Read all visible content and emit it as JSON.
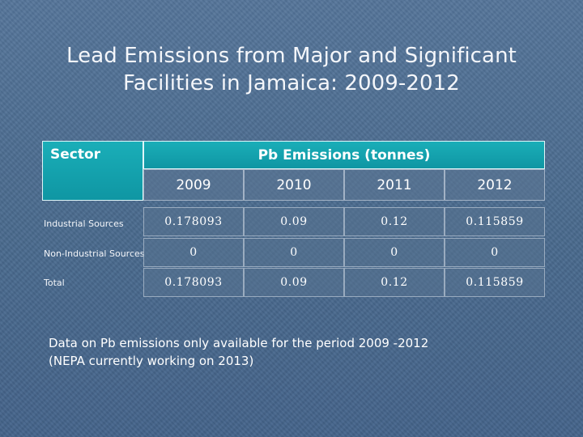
{
  "title": {
    "line1": "Lead Emissions from Major and Significant",
    "line2": "Facilities in Jamaica: 2009-2012"
  },
  "table": {
    "sector_header": "Sector",
    "emissions_header": "Pb Emissions (tonnes)",
    "years": [
      "2009",
      "2010",
      "2011",
      "2012"
    ],
    "rows": [
      {
        "label": "Industrial Sources",
        "values": [
          "0.178093",
          "0.09",
          "0.12",
          "0.115859"
        ]
      },
      {
        "label": "Non-Industrial Sources",
        "values": [
          "0",
          "0",
          "0",
          "0"
        ]
      },
      {
        "label": "Total",
        "values": [
          "0.178093",
          "0.09",
          "0.12",
          "0.115859"
        ]
      }
    ]
  },
  "note": {
    "line1": "Data on Pb emissions only available for the period 2009 -2012",
    "line2": "(NEPA currently working on 2013)"
  },
  "colors": {
    "background": "#4a6a8c",
    "header_fill": "#1aaeb8"
  }
}
